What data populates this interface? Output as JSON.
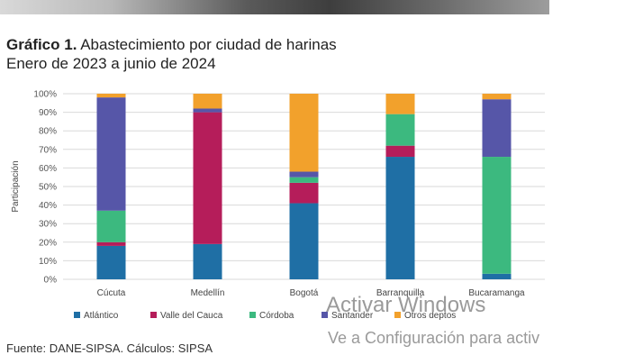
{
  "header": {
    "title_bold": "Gráfico 1.",
    "title_rest": " Abastecimiento por ciudad de harinas",
    "subtitle": "Enero de 2023 a junio de 2024"
  },
  "footer": {
    "source": "Fuente: DANE-SIPSA. Cálculos: SIPSA"
  },
  "watermark": {
    "line1": "Activar Windows",
    "line2": "Ve a Configuración para activ"
  },
  "chart_data": {
    "type": "bar",
    "stacked": true,
    "title": "Gráfico 1. Abastecimiento por ciudad de harinas",
    "subtitle": "Enero de 2023 a junio de 2024",
    "xlabel": "",
    "ylabel": "Participación",
    "ylim": [
      0,
      100
    ],
    "yticks": [
      "0%",
      "10%",
      "20%",
      "30%",
      "40%",
      "50%",
      "60%",
      "70%",
      "80%",
      "90%",
      "100%"
    ],
    "grid": true,
    "legend_position": "bottom",
    "categories": [
      "Cúcuta",
      "Medellín",
      "Bogotá",
      "Barranquilla",
      "Bucaramanga"
    ],
    "series": [
      {
        "name": "Atlántico",
        "color": "#1f6fa5",
        "values": [
          18,
          19,
          41,
          66,
          3
        ]
      },
      {
        "name": "Valle del Cauca",
        "color": "#b51d5a",
        "values": [
          2,
          71,
          11,
          6,
          0
        ]
      },
      {
        "name": "Córdoba",
        "color": "#3cb97f",
        "values": [
          17,
          0,
          3,
          17,
          63
        ]
      },
      {
        "name": "Santander",
        "color": "#5656a8",
        "values": [
          61,
          2,
          3,
          0,
          31
        ]
      },
      {
        "name": "Otros deptos",
        "color": "#f2a12c",
        "values": [
          2,
          8,
          42,
          11,
          3
        ]
      }
    ]
  }
}
